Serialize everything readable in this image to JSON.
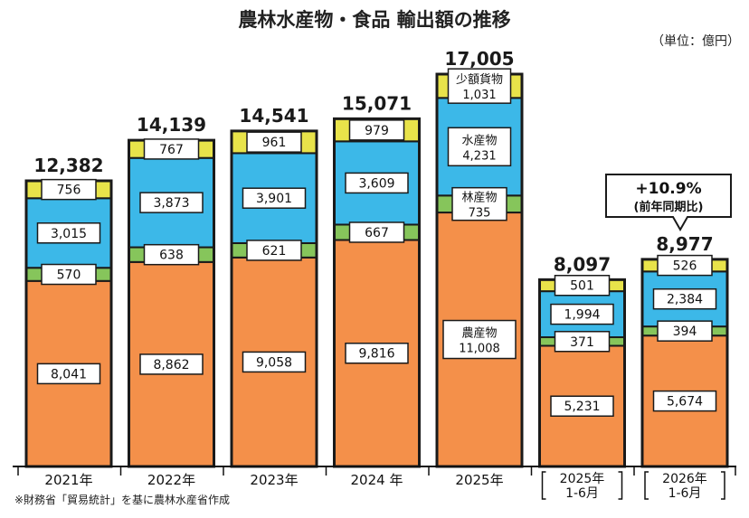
{
  "chart_data": {
    "type": "bar",
    "stacked": true,
    "title": "農林水産物・食品 輸出額の推移",
    "unit": "（単位：億円）",
    "source_note": "※財務省「貿易統計」を基に農林水産省作成",
    "categories": [
      "2021年",
      "2022年",
      "2023年",
      "2024 年",
      "2025年",
      "2025年 1-6月",
      "2026年 1-6月"
    ],
    "category_lines": [
      [
        "2021年"
      ],
      [
        "2022年"
      ],
      [
        "2023年"
      ],
      [
        "2024 年"
      ],
      [
        "2025年"
      ],
      [
        "2025年",
        "1-6月"
      ],
      [
        "2026年",
        "1-6月"
      ]
    ],
    "series": [
      {
        "name": "農産物",
        "color": "#F4904A",
        "values": [
          8041,
          8862,
          9058,
          9816,
          11008,
          5231,
          5674
        ]
      },
      {
        "name": "林産物",
        "color": "#86C55B",
        "values": [
          570,
          638,
          621,
          667,
          735,
          371,
          394
        ]
      },
      {
        "name": "水産物",
        "color": "#3CB8E8",
        "values": [
          3015,
          3873,
          3901,
          3609,
          4231,
          1994,
          2384
        ]
      },
      {
        "name": "少額貨物",
        "color": "#E8E34A",
        "values": [
          756,
          767,
          961,
          979,
          1031,
          501,
          526
        ]
      }
    ],
    "totals": [
      12382,
      14139,
      14541,
      15071,
      17005,
      8097,
      8977
    ],
    "total_labels": [
      "12,382",
      "14,139",
      "14,541",
      "15,071",
      "17,005",
      "8,097",
      "8,977"
    ],
    "segment_labels": [
      [
        "8,041",
        "570",
        "3,015",
        "756"
      ],
      [
        "8,862",
        "638",
        "3,873",
        "767"
      ],
      [
        "9,058",
        "621",
        "3,901",
        "961"
      ],
      [
        "9,816",
        "667",
        "3,609",
        "979"
      ],
      [
        "11,008",
        "735",
        "4,231",
        "1,031"
      ],
      [
        "5,231",
        "371",
        "1,994",
        "501"
      ],
      [
        "5,674",
        "394",
        "2,384",
        "526"
      ]
    ],
    "callout": {
      "main": "+10.9%",
      "sub": "(前年同期比)"
    },
    "ylim": [
      0,
      17005
    ],
    "grid": false
  }
}
